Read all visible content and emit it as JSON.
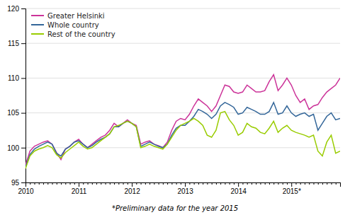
{
  "chart_data": {
    "type": "line",
    "categories": [
      "2010",
      null,
      null,
      null,
      null,
      null,
      null,
      null,
      null,
      null,
      null,
      null,
      "2011",
      null,
      null,
      null,
      null,
      null,
      null,
      null,
      null,
      null,
      null,
      null,
      "2012",
      null,
      null,
      null,
      null,
      null,
      null,
      null,
      null,
      null,
      null,
      null,
      "2013",
      null,
      null,
      null,
      null,
      null,
      null,
      null,
      null,
      null,
      null,
      null,
      "2014",
      null,
      null,
      null,
      null,
      null,
      null,
      null,
      null,
      null,
      null,
      null,
      "2015*",
      null,
      null,
      null,
      null,
      null,
      null,
      null,
      null,
      null,
      null,
      null
    ],
    "series": [
      {
        "name": "Greater Helsinki",
        "color": "#cc3399",
        "values": [
          97.5,
          99.5,
          100.2,
          100.5,
          100.8,
          101.0,
          100.5,
          99.3,
          98.3,
          99.8,
          100.2,
          100.8,
          101.2,
          100.5,
          100.0,
          100.5,
          101.0,
          101.5,
          101.8,
          102.5,
          103.5,
          103.0,
          103.5,
          104.0,
          103.5,
          103.2,
          100.5,
          100.8,
          101.0,
          100.5,
          100.3,
          100.0,
          100.8,
          102.5,
          103.8,
          104.2,
          104.0,
          104.8,
          106.0,
          107.0,
          106.5,
          106.0,
          105.2,
          106.0,
          107.5,
          109.0,
          108.8,
          108.0,
          107.8,
          108.0,
          109.0,
          108.5,
          108.0,
          108.0,
          108.2,
          109.5,
          110.5,
          108.2,
          109.0,
          110.0,
          109.0,
          107.5,
          106.5,
          107.0,
          105.5,
          106.0,
          106.2,
          107.2,
          108.0,
          108.5,
          109.0,
          110.0
        ]
      },
      {
        "name": "Whole country",
        "color": "#336699",
        "values": [
          97.2,
          99.0,
          99.8,
          100.2,
          100.5,
          100.8,
          100.5,
          99.2,
          98.8,
          99.8,
          100.2,
          100.8,
          101.0,
          100.5,
          100.0,
          100.3,
          100.8,
          101.2,
          101.5,
          102.0,
          103.0,
          103.0,
          103.5,
          103.8,
          103.5,
          103.0,
          100.2,
          100.5,
          100.8,
          100.5,
          100.2,
          100.0,
          100.5,
          101.8,
          102.8,
          103.2,
          103.2,
          103.8,
          104.5,
          105.5,
          105.2,
          104.8,
          104.2,
          104.8,
          106.0,
          106.5,
          106.2,
          105.8,
          104.8,
          105.0,
          105.8,
          105.5,
          105.2,
          104.8,
          104.8,
          105.2,
          106.5,
          104.8,
          105.0,
          106.0,
          105.0,
          104.5,
          104.8,
          105.0,
          104.5,
          104.8,
          102.5,
          103.5,
          104.5,
          105.0,
          104.0,
          104.2
        ]
      },
      {
        "name": "Rest of the country",
        "color": "#99cc00",
        "values": [
          97.0,
          98.8,
          99.5,
          99.8,
          100.0,
          100.3,
          100.0,
          99.0,
          98.5,
          99.3,
          99.8,
          100.3,
          100.8,
          100.2,
          99.8,
          100.0,
          100.5,
          101.0,
          101.5,
          102.0,
          103.0,
          103.2,
          103.5,
          103.8,
          103.5,
          103.0,
          100.0,
          100.2,
          100.5,
          100.2,
          100.0,
          99.8,
          100.5,
          101.5,
          102.5,
          103.2,
          103.5,
          103.8,
          104.2,
          103.8,
          103.2,
          101.8,
          101.5,
          102.5,
          105.0,
          105.2,
          104.0,
          103.2,
          101.8,
          102.2,
          103.5,
          103.0,
          102.8,
          102.2,
          102.0,
          102.8,
          103.8,
          102.2,
          102.8,
          103.2,
          102.5,
          102.2,
          102.0,
          101.8,
          101.5,
          101.8,
          99.5,
          98.8,
          100.8,
          101.8,
          99.2,
          99.5
        ]
      }
    ],
    "ylim": [
      95,
      120
    ],
    "yticks": [
      95,
      100,
      105,
      110,
      115,
      120
    ],
    "grid": true,
    "legend": "upper left",
    "annotations": [
      "*Preliminary data for the year 2015"
    ]
  }
}
